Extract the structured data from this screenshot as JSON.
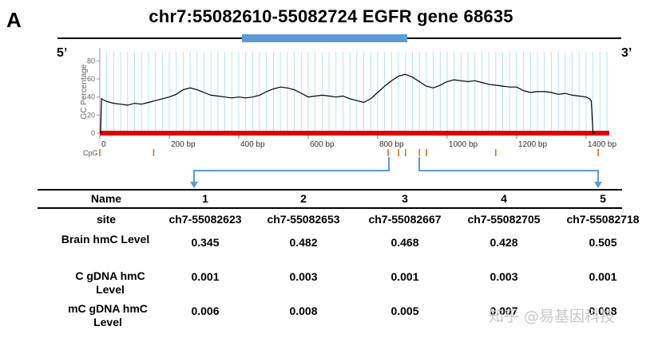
{
  "panel_letter": "A",
  "title": "chr7:55082610-55082724   EGFR gene 68635",
  "strand_left": "5’",
  "strand_right": "3’",
  "chart_data": {
    "type": "line",
    "ylabel": "GC Percentage",
    "yticks": [
      "0",
      "20",
      "40",
      "60",
      "80"
    ],
    "ylim": [
      0,
      90
    ],
    "xlim": [
      0,
      1460
    ],
    "xticks": [
      {
        "value": 0,
        "label": "0"
      },
      {
        "value": 200,
        "label": "200 bp"
      },
      {
        "value": 400,
        "label": "400 bp"
      },
      {
        "value": 600,
        "label": "600 bp"
      },
      {
        "value": 800,
        "label": "800 bp"
      },
      {
        "value": 1000,
        "label": "1000 bp"
      },
      {
        "value": 1200,
        "label": "1200 bp"
      },
      {
        "value": 1400,
        "label": "1400 bp"
      }
    ],
    "cpg_label": "CpG",
    "cpg_sites": [
      0,
      155,
      830,
      860,
      880,
      920,
      940,
      1140,
      1435
    ],
    "highlight_region": [
      400,
      875
    ],
    "colors": {
      "line": "#000000",
      "grid": "#9fe0ea",
      "baseline": "#e00000",
      "cpg": "#e8620a",
      "region": "#5b9bd5",
      "arrow": "#5b9bd5"
    },
    "x": [
      0,
      2,
      5,
      10,
      20,
      40,
      60,
      80,
      100,
      120,
      140,
      160,
      180,
      200,
      220,
      240,
      260,
      280,
      300,
      320,
      340,
      360,
      380,
      400,
      420,
      440,
      460,
      480,
      500,
      520,
      540,
      560,
      580,
      600,
      620,
      640,
      660,
      680,
      700,
      720,
      740,
      760,
      780,
      800,
      820,
      840,
      860,
      880,
      900,
      920,
      940,
      960,
      980,
      1000,
      1020,
      1040,
      1060,
      1080,
      1100,
      1120,
      1140,
      1160,
      1180,
      1200,
      1220,
      1240,
      1260,
      1280,
      1300,
      1320,
      1340,
      1360,
      1380,
      1400,
      1410,
      1415,
      1420,
      1425
    ],
    "values": [
      0,
      0,
      38,
      37,
      35,
      33,
      32,
      31,
      33,
      32,
      34,
      36,
      38,
      40,
      43,
      48,
      50,
      48,
      45,
      42,
      41,
      40,
      39,
      40,
      39,
      40,
      42,
      46,
      49,
      51,
      50,
      48,
      44,
      40,
      41,
      42,
      41,
      40,
      41,
      38,
      36,
      34,
      38,
      45,
      52,
      58,
      63,
      65,
      62,
      57,
      52,
      50,
      53,
      57,
      59,
      58,
      57,
      58,
      56,
      54,
      53,
      52,
      51,
      51,
      47,
      45,
      46,
      46,
      45,
      43,
      44,
      42,
      41,
      40,
      38,
      36,
      0,
      0
    ]
  },
  "arrows": [
    "1",
    "5"
  ],
  "table": {
    "header_label": "Name",
    "columns": [
      "1",
      "2",
      "3",
      "4",
      "5"
    ],
    "site_label": "site",
    "sites": [
      "ch7-55082623",
      "ch7-55082653",
      "ch7-55082667",
      "ch7-55082705",
      "ch7-55082718"
    ],
    "rows": [
      {
        "label": "Brain hmC Level",
        "values": [
          "0.345",
          "0.482",
          "0.468",
          "0.428",
          "0.505"
        ]
      },
      {
        "label": "C gDNA hmC Level",
        "values": [
          "0.001",
          "0.003",
          "0.001",
          "0.003",
          "0.001"
        ]
      },
      {
        "label": "mC  gDNA hmC Level",
        "values": [
          "0.006",
          "0.008",
          "0.005",
          "0.007",
          "0.008"
        ]
      }
    ]
  },
  "watermark": "知乎 @易基因科技"
}
